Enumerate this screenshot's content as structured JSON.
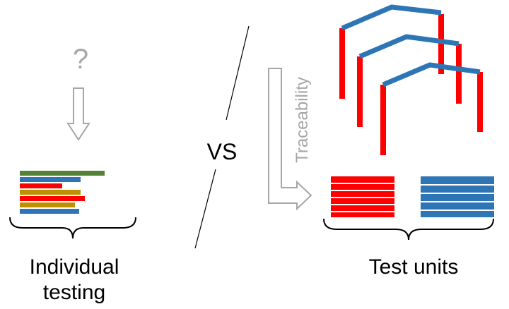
{
  "question_mark": "?",
  "vs_label": "VS",
  "traceability_label": "Traceability",
  "individual_label_line1": "Individual",
  "individual_label_line2": "testing",
  "test_units_label": "Test units",
  "colors": {
    "red": "#ff0000",
    "blue": "#2e75b6",
    "green": "#548235",
    "olive": "#bf9000",
    "gray_arrow": "#a6a6a6",
    "line": "#000000"
  },
  "icons": {
    "down_arrow": "hollow-down-arrow-icon",
    "trace_arrow": "hollow-bent-arrow-icon"
  }
}
